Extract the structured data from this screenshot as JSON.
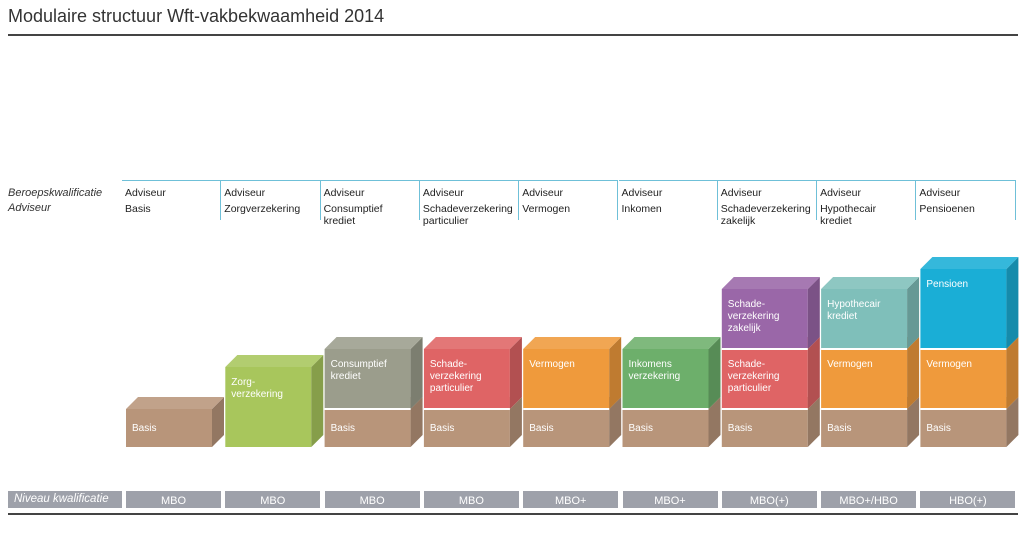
{
  "title": "Modulaire structuur Wft-vakbekwaamheid 2014",
  "row_labels": {
    "beroep_line1": "Beroepskwalificatie",
    "beroep_line2": "Adviseur",
    "niveau": "Niveau kwalificatie"
  },
  "columns": [
    {
      "header": [
        "Adviseur",
        "Basis"
      ],
      "level": "MBO",
      "modules": [
        {
          "label": [
            "Basis"
          ],
          "color": "#b8957a"
        }
      ]
    },
    {
      "header": [
        "Adviseur",
        "Zorgverzekering"
      ],
      "level": "MBO",
      "modules": [
        {
          "label": [
            "Zorg-",
            "verzekering"
          ],
          "color": "#a8c65c",
          "tall": true
        }
      ]
    },
    {
      "header": [
        "Adviseur",
        "Consumptief krediet"
      ],
      "level": "MBO",
      "modules": [
        {
          "label": [
            "Basis"
          ],
          "color": "#b8957a"
        },
        {
          "label": [
            "Consumptief",
            "krediet"
          ],
          "color": "#9b9d8c"
        }
      ]
    },
    {
      "header": [
        "Adviseur",
        "Schadeverzekering",
        "particulier"
      ],
      "level": "MBO",
      "modules": [
        {
          "label": [
            "Basis"
          ],
          "color": "#b8957a"
        },
        {
          "label": [
            "Schade-",
            "verzekering",
            "particulier"
          ],
          "color": "#df6465"
        }
      ]
    },
    {
      "header": [
        "Adviseur",
        "Vermogen"
      ],
      "level": "MBO+",
      "modules": [
        {
          "label": [
            "Basis"
          ],
          "color": "#b8957a"
        },
        {
          "label": [
            "Vermogen"
          ],
          "color": "#ef9a3c"
        }
      ]
    },
    {
      "header": [
        "Adviseur",
        "Inkomen"
      ],
      "level": "MBO+",
      "modules": [
        {
          "label": [
            "Basis"
          ],
          "color": "#b8957a"
        },
        {
          "label": [
            "Inkomens",
            "verzekering"
          ],
          "color": "#6daf6b"
        }
      ]
    },
    {
      "header": [
        "Adviseur",
        "Schadeverzekering",
        "zakelijk"
      ],
      "level": "MBO(+)",
      "modules": [
        {
          "label": [
            "Basis"
          ],
          "color": "#b8957a"
        },
        {
          "label": [
            "Schade-",
            "verzekering",
            "particulier"
          ],
          "color": "#df6465"
        },
        {
          "label": [
            "Schade-",
            "verzekering",
            "zakelijk"
          ],
          "color": "#9a67a8"
        }
      ]
    },
    {
      "header": [
        "Adviseur",
        "Hypothecair",
        "krediet"
      ],
      "level": "MBO+/HBO",
      "modules": [
        {
          "label": [
            "Basis"
          ],
          "color": "#b8957a"
        },
        {
          "label": [
            "Vermogen"
          ],
          "color": "#ef9a3c"
        },
        {
          "label": [
            "Hypothecair",
            "krediet"
          ],
          "color": "#7fbfba"
        }
      ]
    },
    {
      "header": [
        "Adviseur",
        "Pensioenen"
      ],
      "level": "HBO(+)",
      "modules": [
        {
          "label": [
            "Basis"
          ],
          "color": "#b8957a"
        },
        {
          "label": [
            "Vermogen"
          ],
          "color": "#ef9a3c"
        },
        {
          "label": [
            "Pensioen"
          ],
          "color": "#1aaed6",
          "tall": true
        }
      ]
    }
  ]
}
